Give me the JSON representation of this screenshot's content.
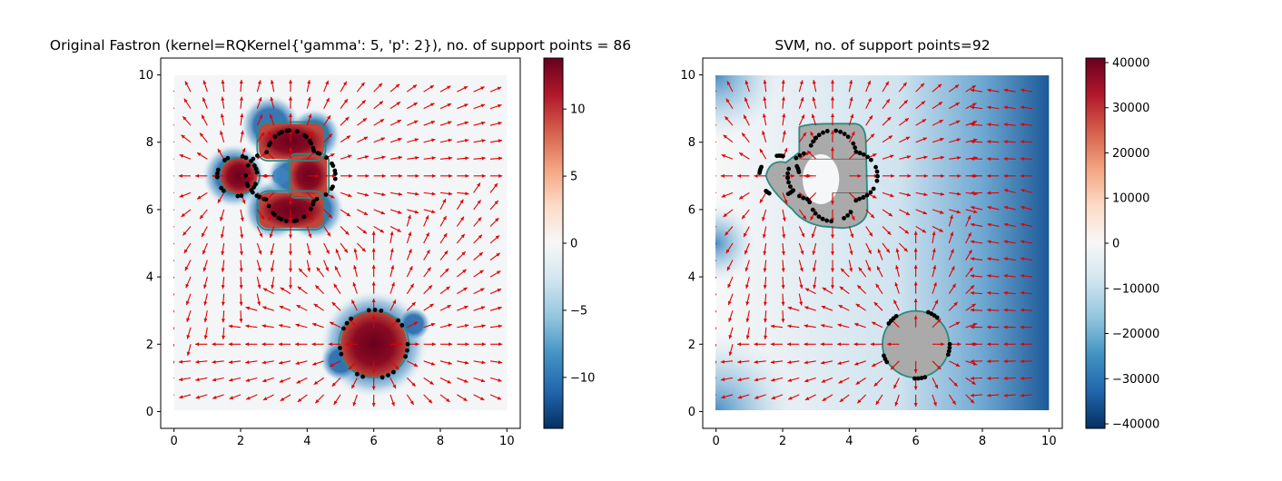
{
  "chart_data": [
    {
      "type": "heatmap",
      "title": "Original Fastron (kernel=RQKernel{'gamma': 5, 'p': 2}), no. of support points = 86",
      "xlim": [
        -0.4,
        10.4
      ],
      "ylim": [
        -0.5,
        10.5
      ],
      "xticks": [
        "0",
        "2",
        "4",
        "6",
        "8",
        "10"
      ],
      "yticks": [
        "0",
        "2",
        "4",
        "6",
        "8",
        "10"
      ],
      "colorbar": {
        "min": -13.8,
        "max": 13.8,
        "ticks": [
          "−10",
          "−5",
          "0",
          "5",
          "10"
        ],
        "tick_values": [
          -10,
          -5,
          0,
          5,
          10
        ],
        "colormap": "RdBu_r"
      },
      "obstacles": [
        {
          "kind": "box",
          "x": [
            2.5,
            4.5
          ],
          "y": [
            7.5,
            8.5
          ]
        },
        {
          "kind": "box",
          "x": [
            2.5,
            4.5
          ],
          "y": [
            5.5,
            6.5
          ]
        },
        {
          "kind": "box",
          "x": [
            3.5,
            4.5
          ],
          "y": [
            6.5,
            7.5
          ]
        },
        {
          "kind": "circle",
          "center": [
            1.8,
            7.0
          ],
          "radius": 0.6
        },
        {
          "kind": "circle",
          "center": [
            6.0,
            2.0
          ],
          "radius": 1.0
        }
      ],
      "field_color": "#e00000",
      "boundary_color": "#2a8a80",
      "support_points": 86
    },
    {
      "type": "heatmap",
      "title": "SVM, no. of support points=92",
      "xlim": [
        -0.4,
        10.4
      ],
      "ylim": [
        -0.5,
        10.5
      ],
      "xticks": [
        "0",
        "2",
        "4",
        "6",
        "8",
        "10"
      ],
      "yticks": [
        "0",
        "2",
        "4",
        "6",
        "8",
        "10"
      ],
      "colorbar": {
        "min": -41000,
        "max": 41000,
        "ticks": [
          "40000",
          "30000",
          "20000",
          "10000",
          "0",
          "−10000",
          "−20000",
          "−30000",
          "−40000"
        ],
        "tick_values": [
          40000,
          30000,
          20000,
          10000,
          0,
          -10000,
          -20000,
          -30000,
          -40000
        ],
        "colormap": "RdBu_r"
      },
      "obstacles": [
        {
          "kind": "box",
          "x": [
            2.5,
            4.5
          ],
          "y": [
            7.5,
            8.5
          ]
        },
        {
          "kind": "box",
          "x": [
            2.5,
            4.5
          ],
          "y": [
            5.5,
            6.5
          ]
        },
        {
          "kind": "box",
          "x": [
            3.5,
            4.5
          ],
          "y": [
            6.5,
            7.5
          ]
        },
        {
          "kind": "circle",
          "center": [
            1.8,
            7.0
          ],
          "radius": 0.6
        },
        {
          "kind": "circle",
          "center": [
            6.0,
            2.0
          ],
          "radius": 1.0
        }
      ],
      "field_color": "#e00000",
      "boundary_color": "#2a8a80",
      "support_points": 92
    }
  ]
}
